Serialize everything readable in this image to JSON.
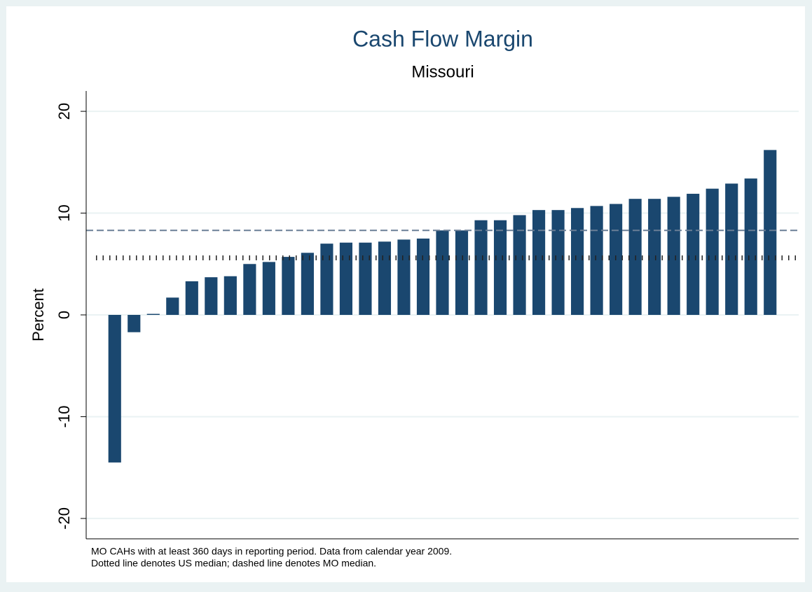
{
  "chart_data": {
    "type": "bar",
    "title": "Cash Flow Margin",
    "subtitle": "Missouri",
    "y_label": "Percent",
    "values": [
      -14.5,
      -1.7,
      0.1,
      1.7,
      3.3,
      3.7,
      3.8,
      5.0,
      5.2,
      5.7,
      6.1,
      7.0,
      7.1,
      7.1,
      7.2,
      7.4,
      7.5,
      8.3,
      8.3,
      9.3,
      9.3,
      9.8,
      10.3,
      10.3,
      10.5,
      10.7,
      10.9,
      11.4,
      11.4,
      11.6,
      11.9,
      12.4,
      12.9,
      13.4,
      16.2
    ],
    "color": "#1a476f",
    "ylim": [
      -22,
      22
    ],
    "yticks": [
      -20,
      -10,
      0,
      10,
      20
    ],
    "grid": true,
    "reference_lines": [
      {
        "value": 8.3,
        "style": "dashed",
        "color": "#6a7f96"
      },
      {
        "value": 5.6,
        "style": "dotted",
        "color": "#222222"
      }
    ],
    "notes": [
      "MO CAHs with at least 360 days in reporting period. Data from calendar year 2009.",
      "Dotted line denotes US median; dashed line denotes MO median."
    ]
  }
}
